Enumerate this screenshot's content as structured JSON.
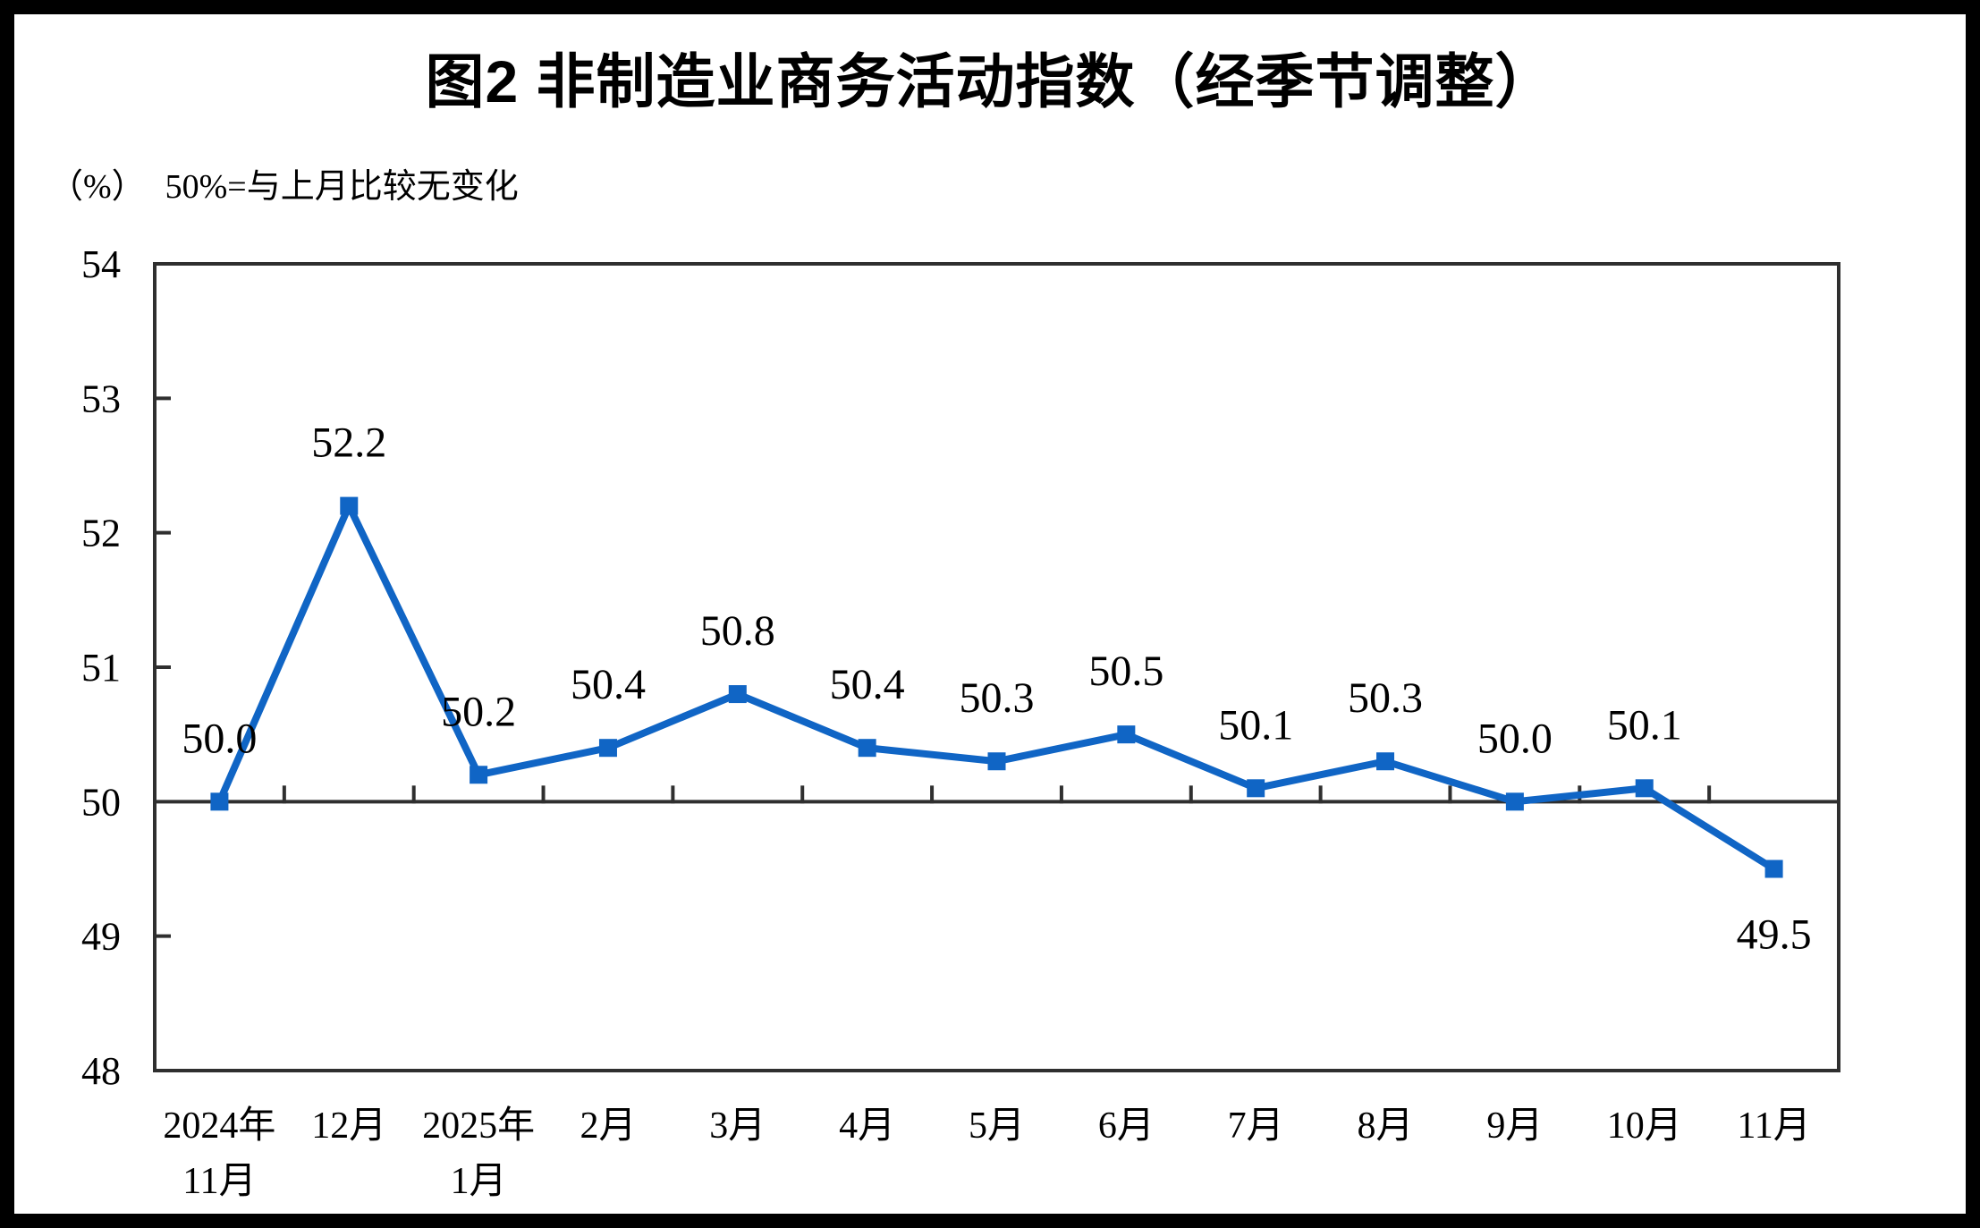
{
  "header": {
    "title": "图2  非制造业商务活动指数（经季节调整）",
    "unit_note": "（%）",
    "reference_note": "50%=与上月比较无变化"
  },
  "chart_data": {
    "type": "line",
    "title": "图2 非制造业商务活动指数（经季节调整）",
    "unit": "（%）",
    "annotation": "50%=与上月比较无变化",
    "categories": [
      [
        "2024年",
        "11月"
      ],
      [
        "12月"
      ],
      [
        "2025年",
        "1月"
      ],
      [
        "2月"
      ],
      [
        "3月"
      ],
      [
        "4月"
      ],
      [
        "5月"
      ],
      [
        "6月"
      ],
      [
        "7月"
      ],
      [
        "8月"
      ],
      [
        "9月"
      ],
      [
        "10月"
      ],
      [
        "11月"
      ]
    ],
    "series": [
      {
        "name": "非制造业商务活动指数",
        "values": [
          50.0,
          52.2,
          50.2,
          50.4,
          50.8,
          50.4,
          50.3,
          50.5,
          50.1,
          50.3,
          50.0,
          50.1,
          49.5
        ],
        "labels": [
          "50.0",
          "52.2",
          "50.2",
          "50.4",
          "50.8",
          "50.4",
          "50.3",
          "50.5",
          "50.1",
          "50.3",
          "50.0",
          "50.1",
          "49.5"
        ]
      }
    ],
    "ylim": [
      48,
      54
    ],
    "yticks": [
      48,
      49,
      50,
      51,
      52,
      53,
      54
    ],
    "baseline": 50,
    "grid": false,
    "legend": false,
    "marker": "square",
    "colors": {
      "line": "#1065C5",
      "axis": "#2F2F2F",
      "text": "#000000",
      "background": "#FFFFFF",
      "page_border": "#000000"
    }
  }
}
